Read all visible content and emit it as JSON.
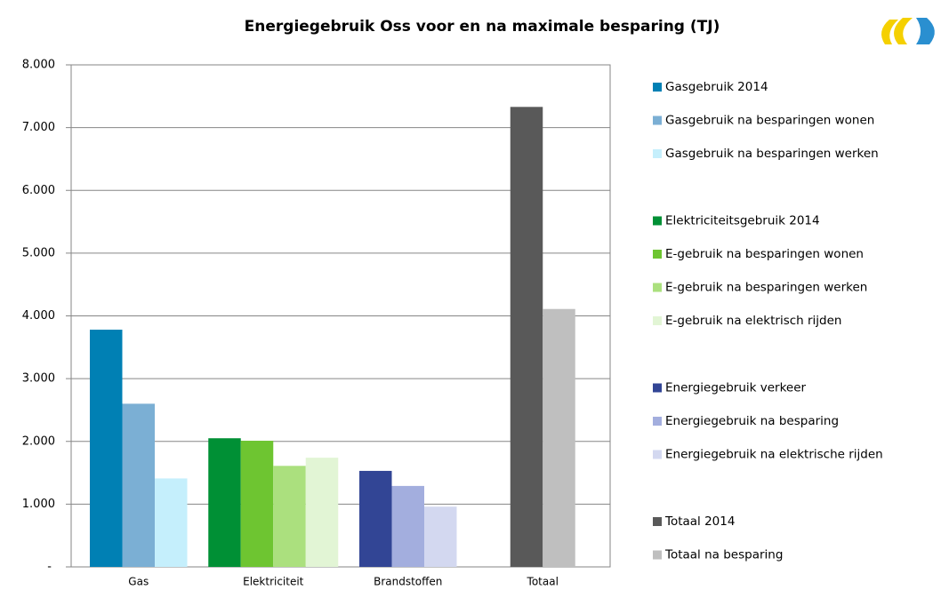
{
  "chart_data": {
    "type": "bar",
    "title": "Energiegebruik Oss voor en na maximale besparing (TJ)",
    "categories": [
      "Gas",
      "Elektriciteit",
      "Brandstoffen",
      "Totaal"
    ],
    "series": [
      {
        "name": "Gasgebruik 2014",
        "color": "#0080b4",
        "values": [
          3780,
          null,
          null,
          null
        ]
      },
      {
        "name": "Gasgebruik na besparingen wonen",
        "color": "#7bafd4",
        "values": [
          2600,
          null,
          null,
          null
        ]
      },
      {
        "name": "Gasgebruik na besparingen werken",
        "color": "#c5effc",
        "values": [
          1410,
          null,
          null,
          null
        ]
      },
      {
        "name": "Elektriciteitsgebruik 2014",
        "color": "#009035",
        "values": [
          null,
          2050,
          null,
          null
        ]
      },
      {
        "name": "E-gebruik na besparingen wonen",
        "color": "#6ec531",
        "values": [
          null,
          2010,
          null,
          null
        ]
      },
      {
        "name": "E-gebruik na besparingen werken",
        "color": "#abe07e",
        "values": [
          null,
          1610,
          null,
          null
        ]
      },
      {
        "name": "E-gebruik na elektrisch rijden",
        "color": "#e2f5d5",
        "values": [
          null,
          1740,
          null,
          null
        ]
      },
      {
        "name": "Energiegebruik verkeer",
        "color": "#324595",
        "values": [
          null,
          null,
          1530,
          null
        ]
      },
      {
        "name": "Energiegebruik na besparing",
        "color": "#a3aede",
        "values": [
          null,
          null,
          1290,
          null
        ]
      },
      {
        "name": "Energiegebruik na elektrische rijden",
        "color": "#d3d8f0",
        "values": [
          null,
          null,
          960,
          null
        ]
      },
      {
        "name": "Totaal 2014",
        "color": "#595959",
        "values": [
          null,
          null,
          null,
          7330
        ]
      },
      {
        "name": "Totaal na besparing",
        "color": "#bfbfbf",
        "values": [
          null,
          null,
          null,
          4110
        ]
      }
    ],
    "ylim": [
      0,
      8000
    ],
    "yticks": [
      {
        "value": 0,
        "label": "-"
      },
      {
        "value": 1000,
        "label": "1.000"
      },
      {
        "value": 2000,
        "label": "2.000"
      },
      {
        "value": 3000,
        "label": "3.000"
      },
      {
        "value": 4000,
        "label": "4.000"
      },
      {
        "value": 5000,
        "label": "5.000"
      },
      {
        "value": 6000,
        "label": "6.000"
      },
      {
        "value": 7000,
        "label": "7.000"
      },
      {
        "value": 8000,
        "label": "8.000"
      }
    ],
    "grid": true,
    "legend": "right"
  }
}
